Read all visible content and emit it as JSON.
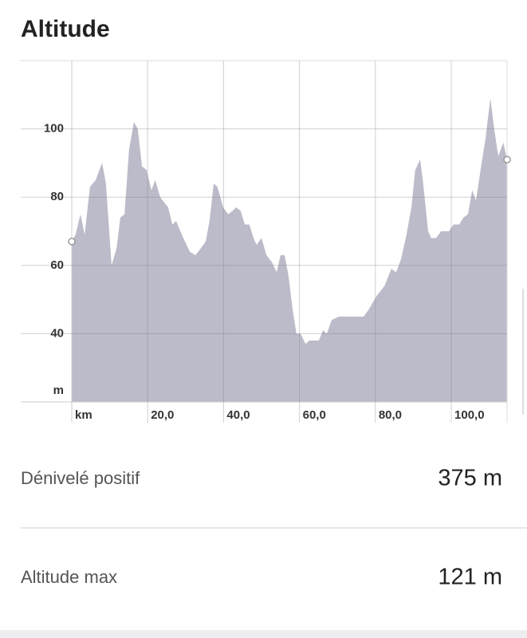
{
  "header": {
    "title": "Altitude"
  },
  "chart_data": {
    "type": "area",
    "x_label": "km",
    "y_label": "m",
    "x": [
      0,
      1,
      2.3,
      3.4,
      4.8,
      6.3,
      8,
      9,
      10.5,
      11.8,
      12.8,
      13.9,
      15.1,
      16.4,
      17.4,
      18.5,
      19.7,
      21,
      22,
      23.3,
      25.4,
      26.5,
      27.5,
      29.4,
      31.1,
      32.6,
      34,
      35.3,
      36.3,
      37.4,
      38.4,
      39.9,
      41.2,
      42.4,
      43.3,
      44.5,
      45.6,
      46.8,
      47.9,
      48.7,
      50,
      51.3,
      52.7,
      54,
      55,
      56.1,
      57.1,
      58.2,
      59.2,
      60.3,
      61.6,
      62.6,
      65.1,
      66.2,
      67.2,
      68.5,
      70.4,
      71.6,
      72.9,
      74.2,
      75.6,
      76.9,
      78.2,
      80.3,
      82.4,
      84.2,
      85.5,
      86.8,
      88.2,
      89.5,
      90.5,
      91.8,
      92.6,
      93.9,
      94.7,
      96,
      97.3,
      99.4,
      100.6,
      102.1,
      103.2,
      104.4,
      105.5,
      106.5,
      108,
      109,
      110.3,
      111.3,
      112.4,
      113.7,
      114.7
    ],
    "series": [
      {
        "name": "Altitude",
        "color": "#bcbbc9",
        "values": [
          67,
          69,
          75,
          69,
          83,
          85,
          90,
          84,
          60,
          65,
          74,
          75,
          94,
          102,
          100,
          89,
          88,
          82,
          85,
          80,
          77,
          72,
          73,
          68,
          64,
          63,
          65,
          67,
          73,
          84,
          83,
          77,
          75,
          76,
          77,
          76,
          72,
          72,
          68,
          66,
          68,
          63,
          61,
          58,
          63,
          63,
          57,
          47,
          40,
          40,
          37,
          38,
          38,
          41,
          40,
          44,
          45,
          45,
          45,
          45,
          45,
          45,
          47,
          51,
          54,
          59,
          58,
          62,
          69,
          77,
          88,
          91,
          84,
          70,
          68,
          68,
          70,
          70,
          72,
          72,
          74,
          75,
          82,
          79,
          90,
          97,
          109,
          100,
          92,
          96,
          91
        ]
      }
    ],
    "xlim": [
      0,
      114.7
    ],
    "ylim": [
      20,
      120
    ],
    "xticks": [
      {
        "value": 20,
        "label": "20,0"
      },
      {
        "value": 40,
        "label": "40,0"
      },
      {
        "value": 60,
        "label": "60,0"
      },
      {
        "value": 80,
        "label": "80,0"
      },
      {
        "value": 100,
        "label": "100,0"
      }
    ],
    "yticks": [
      40,
      60,
      80,
      100
    ],
    "grid": true
  },
  "stats": [
    {
      "label": "Dénivelé positif",
      "value": "375 m"
    },
    {
      "label": "Altitude max",
      "value": "121 m"
    }
  ]
}
